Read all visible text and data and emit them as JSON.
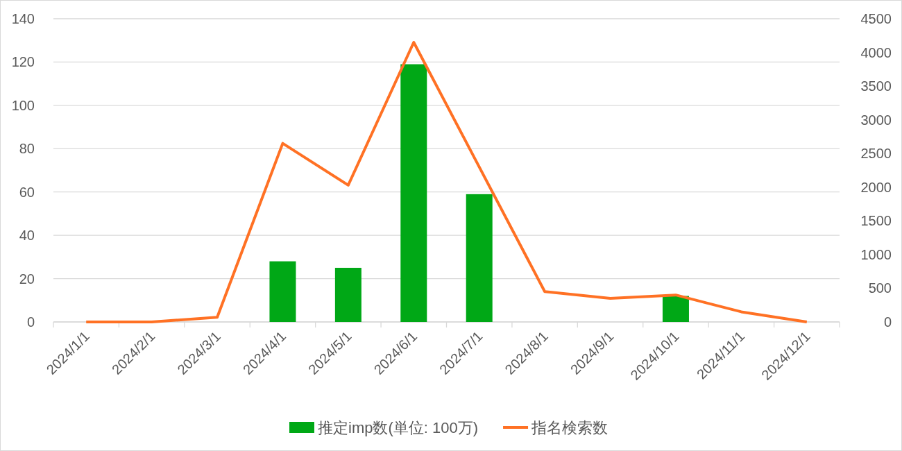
{
  "chart_data": {
    "type": "bar",
    "categories": [
      "2024/1/1",
      "2024/2/1",
      "2024/3/1",
      "2024/4/1",
      "2024/5/1",
      "2024/6/1",
      "2024/7/1",
      "2024/8/1",
      "2024/9/1",
      "2024/10/1",
      "2024/11/1",
      "2024/12/1"
    ],
    "series": [
      {
        "name": "推定imp数(単位: 100万)",
        "color": "#00a816",
        "values": [
          0,
          0,
          0,
          28,
          25,
          119,
          59,
          0,
          0,
          12,
          0,
          0
        ]
      },
      {
        "name": "指名検索数",
        "type": "line",
        "axis": "y2",
        "color": "#ff7124",
        "values": [
          0,
          0,
          70,
          2650,
          2030,
          4150,
          2300,
          450,
          350,
          400,
          150,
          0
        ]
      }
    ],
    "ylim": [
      0,
      140
    ],
    "yticks": [
      0,
      20,
      40,
      60,
      80,
      100,
      120,
      140
    ],
    "y2lim": [
      0,
      4500
    ],
    "y2ticks": [
      0,
      500,
      1000,
      1500,
      2000,
      2500,
      3000,
      3500,
      4000,
      4500
    ],
    "grid": "y",
    "legend": "bottom"
  }
}
